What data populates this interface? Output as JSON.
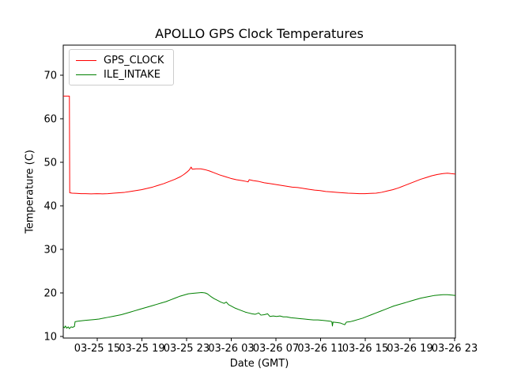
{
  "chart_data": {
    "type": "line",
    "title": "APOLLO GPS Clock Temperatures",
    "xlabel": "Date (GMT)",
    "ylabel": "Temperature (C)",
    "grid": false,
    "legend_position": "upper left",
    "xlim": [
      0,
      35.11
    ],
    "ylim": [
      9.64,
      76.9
    ],
    "x_time_origin_note": "hours after 03-25 12:00 GMT",
    "x_ticks": [
      3.04,
      7.04,
      11.04,
      15.04,
      19.04,
      23.04,
      27.04,
      31.04,
      35.04
    ],
    "x_tick_labels": [
      "03-25 15",
      "03-25 19",
      "03-25 23",
      "03-26 03",
      "03-26 07",
      "03-26 11",
      "03-26 15",
      "03-26 19",
      "03-26 23"
    ],
    "y_ticks": [
      10,
      20,
      30,
      40,
      50,
      60,
      70
    ],
    "y_tick_labels": [
      "10",
      "20",
      "30",
      "40",
      "50",
      "60",
      "70"
    ],
    "axis_color": "#000000",
    "background_color": "#ffffff",
    "series": [
      {
        "name": "GPS_CLOCK",
        "color": "#ff0000",
        "points": [
          [
            0,
            65.2
          ],
          [
            0.3,
            65.2
          ],
          [
            0.55,
            65.2
          ],
          [
            0.58,
            43.0
          ],
          [
            0.8,
            42.9
          ],
          [
            1.2,
            42.85
          ],
          [
            1.6,
            42.8
          ],
          [
            2.0,
            42.8
          ],
          [
            2.5,
            42.75
          ],
          [
            3.0,
            42.8
          ],
          [
            3.5,
            42.75
          ],
          [
            4.0,
            42.8
          ],
          [
            4.5,
            42.9
          ],
          [
            5.0,
            43.0
          ],
          [
            5.5,
            43.1
          ],
          [
            6.0,
            43.3
          ],
          [
            6.5,
            43.5
          ],
          [
            7.0,
            43.7
          ],
          [
            7.5,
            44.0
          ],
          [
            8.0,
            44.3
          ],
          [
            8.5,
            44.7
          ],
          [
            9.0,
            45.1
          ],
          [
            9.5,
            45.6
          ],
          [
            10.0,
            46.1
          ],
          [
            10.5,
            46.7
          ],
          [
            10.8,
            47.2
          ],
          [
            11.1,
            47.8
          ],
          [
            11.3,
            48.3
          ],
          [
            11.45,
            48.9
          ],
          [
            11.55,
            48.4
          ],
          [
            11.9,
            48.5
          ],
          [
            12.3,
            48.5
          ],
          [
            12.7,
            48.3
          ],
          [
            13.1,
            48.0
          ],
          [
            13.5,
            47.6
          ],
          [
            14.0,
            47.1
          ],
          [
            14.5,
            46.7
          ],
          [
            15.0,
            46.3
          ],
          [
            15.5,
            46.0
          ],
          [
            16.0,
            45.8
          ],
          [
            16.4,
            45.6
          ],
          [
            16.55,
            45.5
          ],
          [
            16.65,
            46.0
          ],
          [
            17.0,
            45.8
          ],
          [
            17.5,
            45.6
          ],
          [
            18.0,
            45.3
          ],
          [
            18.5,
            45.1
          ],
          [
            19.0,
            44.9
          ],
          [
            19.5,
            44.7
          ],
          [
            20.0,
            44.5
          ],
          [
            20.5,
            44.3
          ],
          [
            21.0,
            44.2
          ],
          [
            21.5,
            44.0
          ],
          [
            22.0,
            43.8
          ],
          [
            22.5,
            43.6
          ],
          [
            23.0,
            43.5
          ],
          [
            23.5,
            43.3
          ],
          [
            24.0,
            43.2
          ],
          [
            24.5,
            43.1
          ],
          [
            25.0,
            43.0
          ],
          [
            25.5,
            42.9
          ],
          [
            26.0,
            42.85
          ],
          [
            26.5,
            42.8
          ],
          [
            27.0,
            42.8
          ],
          [
            27.5,
            42.85
          ],
          [
            28.0,
            42.9
          ],
          [
            28.5,
            43.1
          ],
          [
            29.0,
            43.4
          ],
          [
            29.5,
            43.7
          ],
          [
            30.0,
            44.1
          ],
          [
            30.5,
            44.6
          ],
          [
            31.0,
            45.1
          ],
          [
            31.5,
            45.6
          ],
          [
            32.0,
            46.1
          ],
          [
            32.5,
            46.5
          ],
          [
            33.0,
            46.9
          ],
          [
            33.5,
            47.2
          ],
          [
            34.0,
            47.4
          ],
          [
            34.4,
            47.5
          ],
          [
            34.7,
            47.4
          ],
          [
            35.11,
            47.3
          ]
        ]
      },
      {
        "name": "ILE_INTAKE",
        "color": "#008000",
        "points": [
          [
            0,
            12.3
          ],
          [
            0.1,
            12.0
          ],
          [
            0.2,
            12.4
          ],
          [
            0.3,
            11.9
          ],
          [
            0.45,
            12.2
          ],
          [
            0.55,
            11.8
          ],
          [
            0.7,
            12.2
          ],
          [
            0.85,
            12.1
          ],
          [
            1.0,
            12.3
          ],
          [
            1.06,
            13.4
          ],
          [
            1.3,
            13.5
          ],
          [
            1.6,
            13.6
          ],
          [
            2.0,
            13.7
          ],
          [
            2.4,
            13.8
          ],
          [
            2.8,
            13.9
          ],
          [
            3.2,
            14.0
          ],
          [
            3.6,
            14.2
          ],
          [
            4.0,
            14.4
          ],
          [
            4.4,
            14.6
          ],
          [
            4.8,
            14.8
          ],
          [
            5.2,
            15.0
          ],
          [
            5.6,
            15.3
          ],
          [
            6.0,
            15.6
          ],
          [
            6.4,
            15.9
          ],
          [
            6.8,
            16.2
          ],
          [
            7.2,
            16.5
          ],
          [
            7.6,
            16.8
          ],
          [
            8.0,
            17.1
          ],
          [
            8.4,
            17.4
          ],
          [
            8.8,
            17.7
          ],
          [
            9.2,
            18.0
          ],
          [
            9.6,
            18.4
          ],
          [
            10.0,
            18.8
          ],
          [
            10.4,
            19.2
          ],
          [
            10.8,
            19.5
          ],
          [
            11.2,
            19.8
          ],
          [
            11.6,
            19.9
          ],
          [
            12.0,
            20.0
          ],
          [
            12.4,
            20.1
          ],
          [
            12.7,
            20.0
          ],
          [
            12.9,
            19.8
          ],
          [
            13.2,
            19.2
          ],
          [
            13.5,
            18.7
          ],
          [
            13.8,
            18.3
          ],
          [
            14.1,
            17.9
          ],
          [
            14.4,
            17.6
          ],
          [
            14.6,
            17.9
          ],
          [
            14.8,
            17.3
          ],
          [
            15.1,
            16.9
          ],
          [
            15.4,
            16.5
          ],
          [
            15.7,
            16.2
          ],
          [
            16.0,
            15.9
          ],
          [
            16.3,
            15.6
          ],
          [
            16.6,
            15.4
          ],
          [
            16.9,
            15.2
          ],
          [
            17.2,
            15.1
          ],
          [
            17.5,
            15.4
          ],
          [
            17.7,
            14.9
          ],
          [
            18.0,
            15.0
          ],
          [
            18.3,
            15.2
          ],
          [
            18.5,
            14.6
          ],
          [
            18.8,
            14.7
          ],
          [
            19.1,
            14.6
          ],
          [
            19.4,
            14.7
          ],
          [
            19.7,
            14.5
          ],
          [
            20.0,
            14.5
          ],
          [
            20.4,
            14.3
          ],
          [
            20.8,
            14.2
          ],
          [
            21.2,
            14.1
          ],
          [
            21.6,
            14.0
          ],
          [
            22.0,
            13.9
          ],
          [
            22.4,
            13.8
          ],
          [
            22.8,
            13.8
          ],
          [
            23.2,
            13.7
          ],
          [
            23.6,
            13.6
          ],
          [
            23.9,
            13.5
          ],
          [
            24.05,
            13.4
          ],
          [
            24.1,
            12.4
          ],
          [
            24.15,
            13.3
          ],
          [
            24.5,
            13.2
          ],
          [
            24.8,
            13.1
          ],
          [
            25.0,
            12.9
          ],
          [
            25.2,
            12.7
          ],
          [
            25.35,
            13.3
          ],
          [
            25.7,
            13.4
          ],
          [
            26.0,
            13.6
          ],
          [
            26.4,
            13.9
          ],
          [
            26.8,
            14.2
          ],
          [
            27.2,
            14.6
          ],
          [
            27.6,
            15.0
          ],
          [
            28.0,
            15.4
          ],
          [
            28.4,
            15.8
          ],
          [
            28.8,
            16.2
          ],
          [
            29.2,
            16.6
          ],
          [
            29.6,
            17.0
          ],
          [
            30.0,
            17.3
          ],
          [
            30.4,
            17.6
          ],
          [
            30.8,
            17.9
          ],
          [
            31.2,
            18.2
          ],
          [
            31.6,
            18.5
          ],
          [
            32.0,
            18.8
          ],
          [
            32.4,
            19.0
          ],
          [
            32.8,
            19.2
          ],
          [
            33.2,
            19.4
          ],
          [
            33.6,
            19.5
          ],
          [
            34.0,
            19.6
          ],
          [
            34.4,
            19.6
          ],
          [
            34.8,
            19.5
          ],
          [
            35.11,
            19.4
          ]
        ]
      }
    ]
  }
}
